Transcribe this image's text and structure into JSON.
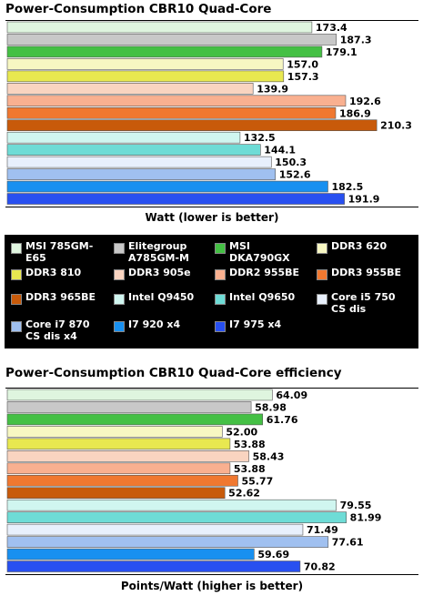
{
  "legend": {
    "items": [
      {
        "label": "MSI 785GM-\nE65",
        "color": "#dff5df"
      },
      {
        "label": "Elitegroup\nA785GM-M",
        "color": "#c8c8c8"
      },
      {
        "label": "MSI\nDKA790GX",
        "color": "#44c044"
      },
      {
        "label": "DDR3 620",
        "color": "#f7f7c2"
      },
      {
        "label": "DDR3 810",
        "color": "#e8e850"
      },
      {
        "label": "DDR3 905e",
        "color": "#f9d4c0"
      },
      {
        "label": "DDR2 955BE",
        "color": "#f9b090"
      },
      {
        "label": "DDR3 955BE",
        "color": "#f07830"
      },
      {
        "label": "DDR3 965BE",
        "color": "#c85a0a"
      },
      {
        "label": "Intel Q9450",
        "color": "#d0f6f0"
      },
      {
        "label": "Intel Q9650",
        "color": "#6edcd6"
      },
      {
        "label": "Core i5 750\nCS dis",
        "color": "#e8f0fc"
      },
      {
        "label": "Core i7 870\nCS dis x4",
        "color": "#a0c0f0"
      },
      {
        "label": "I7 920 x4",
        "color": "#1890f0"
      },
      {
        "label": "I7 975 x4",
        "color": "#2850f0"
      }
    ]
  },
  "chart_data": [
    {
      "type": "bar",
      "orientation": "horizontal",
      "title": "Power-Consumption CBR10 Quad-Core",
      "xlabel": "Watt (lower is better)",
      "xlim": [
        0,
        233
      ],
      "grid": false,
      "categories": [
        "MSI 785GM-E65",
        "Elitegroup A785GM-M",
        "MSI DKA790GX",
        "DDR3 620",
        "DDR3 810",
        "DDR3 905e",
        "DDR2 955BE",
        "DDR3 955BE",
        "DDR3 965BE",
        "Intel Q9450",
        "Intel Q9650",
        "Core i5 750 CS dis",
        "Core i7 870 CS dis x4",
        "I7 920 x4",
        "I7 975 x4"
      ],
      "values": [
        173.4,
        187.3,
        179.1,
        157.0,
        157.3,
        139.9,
        192.6,
        186.9,
        210.3,
        132.5,
        144.1,
        150.3,
        152.6,
        182.5,
        191.9
      ],
      "labels": [
        "173.4",
        "187.3",
        "179.1",
        "157.0",
        "157.3",
        "139.9",
        "192.6",
        "186.9",
        "210.3",
        "132.5",
        "144.1",
        "150.3",
        "152.6",
        "182.5",
        "191.9"
      ]
    },
    {
      "type": "bar",
      "orientation": "horizontal",
      "title": "Power-Consumption CBR10 Quad-Core efficiency",
      "xlabel": "Points/Watt (higher is better)",
      "xlim": [
        0,
        99
      ],
      "grid": false,
      "categories": [
        "MSI 785GM-E65",
        "Elitegroup A785GM-M",
        "MSI DKA790GX",
        "DDR3 620",
        "DDR3 810",
        "DDR3 905e",
        "DDR2 955BE",
        "DDR3 955BE",
        "DDR3 965BE",
        "Intel Q9450",
        "Intel Q9650",
        "Core i5 750 CS dis",
        "Core i7 870 CS dis x4",
        "I7 920 x4",
        "I7 975 x4"
      ],
      "values": [
        64.09,
        58.98,
        61.76,
        52.0,
        53.88,
        58.43,
        53.88,
        55.77,
        52.62,
        79.55,
        81.99,
        71.49,
        77.61,
        59.69,
        70.82
      ],
      "labels": [
        "64.09",
        "58.98",
        "61.76",
        "52.00",
        "53.88",
        "58.43",
        "53.88",
        "55.77",
        "52.62",
        "79.55",
        "81.99",
        "71.49",
        "77.61",
        "59.69",
        "70.82"
      ]
    }
  ]
}
